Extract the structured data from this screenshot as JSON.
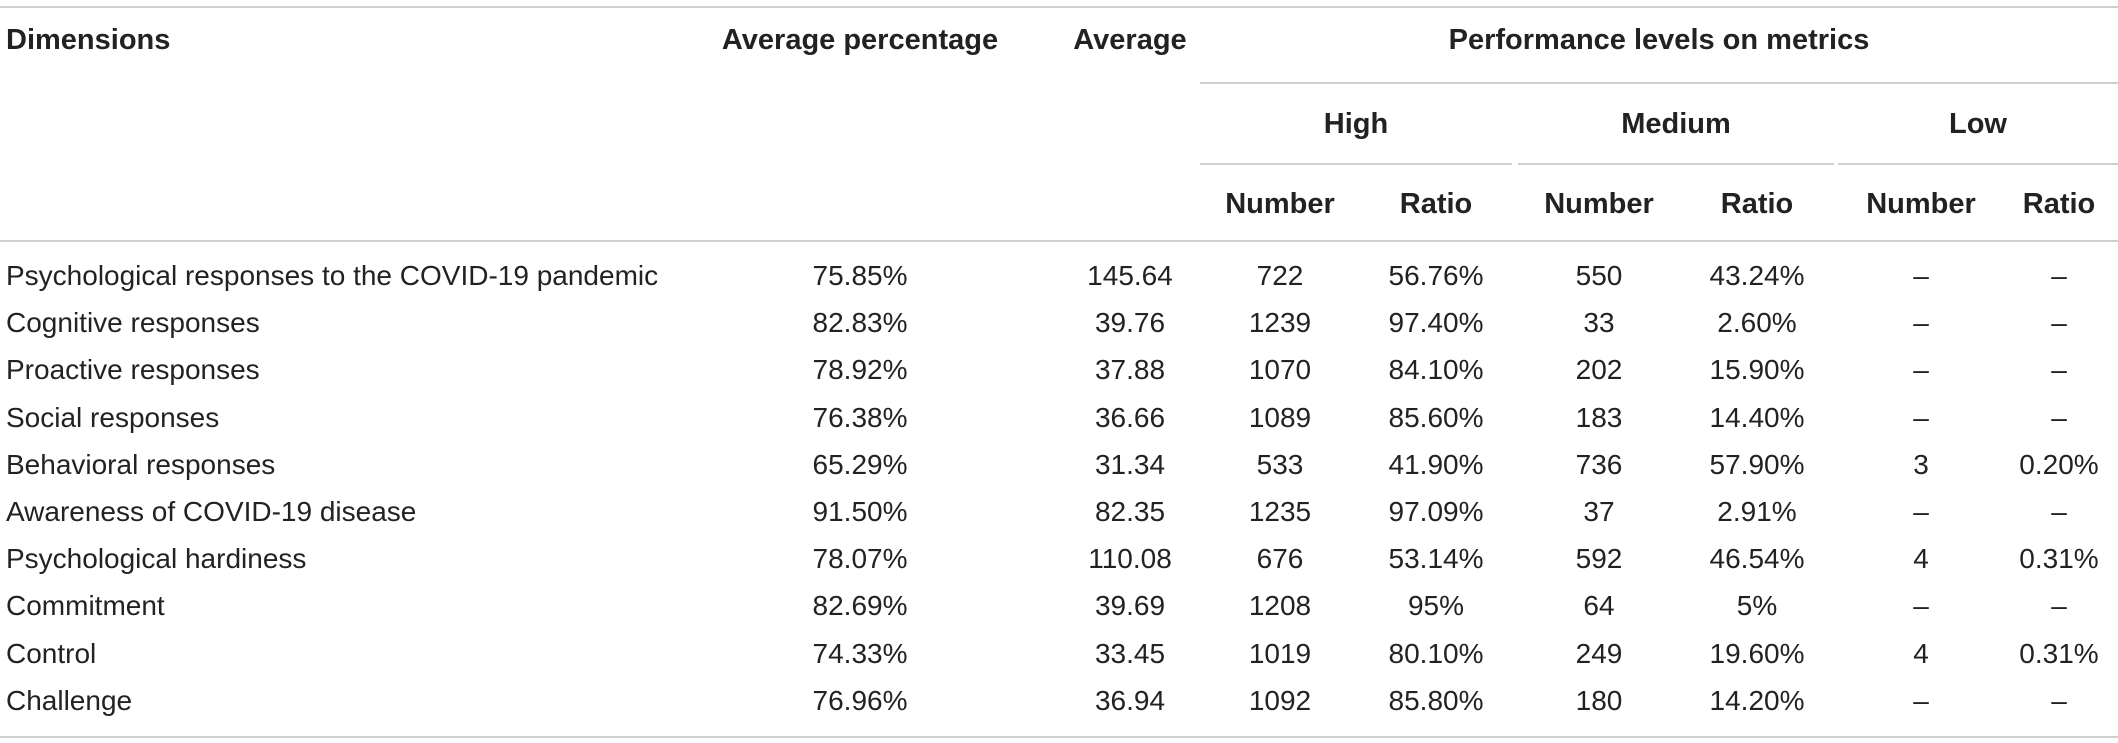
{
  "table": {
    "headers": {
      "dimensions": "Dimensions",
      "avg_percentage": "Average percentage",
      "average": "Average",
      "performance": "Performance levels on metrics",
      "high": "High",
      "medium": "Medium",
      "low": "Low",
      "number": "Number",
      "ratio": "Ratio"
    },
    "rows": [
      {
        "dimension": "Psychological responses to the COVID-19 pandemic",
        "avg_pct": "75.85%",
        "avg": "145.64",
        "high_num": "722",
        "high_ratio": "56.76%",
        "med_num": "550",
        "med_ratio": "43.24%",
        "low_num": "–",
        "low_ratio": "–"
      },
      {
        "dimension": "Cognitive responses",
        "avg_pct": "82.83%",
        "avg": "39.76",
        "high_num": "1239",
        "high_ratio": "97.40%",
        "med_num": "33",
        "med_ratio": "2.60%",
        "low_num": "–",
        "low_ratio": "–"
      },
      {
        "dimension": "Proactive responses",
        "avg_pct": "78.92%",
        "avg": "37.88",
        "high_num": "1070",
        "high_ratio": "84.10%",
        "med_num": "202",
        "med_ratio": "15.90%",
        "low_num": "–",
        "low_ratio": "–"
      },
      {
        "dimension": "Social responses",
        "avg_pct": "76.38%",
        "avg": "36.66",
        "high_num": "1089",
        "high_ratio": "85.60%",
        "med_num": "183",
        "med_ratio": "14.40%",
        "low_num": "–",
        "low_ratio": "–"
      },
      {
        "dimension": "Behavioral responses",
        "avg_pct": "65.29%",
        "avg": "31.34",
        "high_num": "533",
        "high_ratio": "41.90%",
        "med_num": "736",
        "med_ratio": "57.90%",
        "low_num": "3",
        "low_ratio": "0.20%"
      },
      {
        "dimension": "Awareness of COVID-19 disease",
        "avg_pct": "91.50%",
        "avg": "82.35",
        "high_num": "1235",
        "high_ratio": "97.09%",
        "med_num": "37",
        "med_ratio": "2.91%",
        "low_num": "–",
        "low_ratio": "–"
      },
      {
        "dimension": "Psychological hardiness",
        "avg_pct": "78.07%",
        "avg": "110.08",
        "high_num": "676",
        "high_ratio": "53.14%",
        "med_num": "592",
        "med_ratio": "46.54%",
        "low_num": "4",
        "low_ratio": "0.31%"
      },
      {
        "dimension": "Commitment",
        "avg_pct": "82.69%",
        "avg": "39.69",
        "high_num": "1208",
        "high_ratio": "95%",
        "med_num": "64",
        "med_ratio": "5%",
        "low_num": "–",
        "low_ratio": "–"
      },
      {
        "dimension": "Control",
        "avg_pct": "74.33%",
        "avg": "33.45",
        "high_num": "1019",
        "high_ratio": "80.10%",
        "med_num": "249",
        "med_ratio": "19.60%",
        "low_num": "4",
        "low_ratio": "0.31%"
      },
      {
        "dimension": "Challenge",
        "avg_pct": "76.96%",
        "avg": "36.94",
        "high_num": "1092",
        "high_ratio": "85.80%",
        "med_num": "180",
        "med_ratio": "14.20%",
        "low_num": "–",
        "low_ratio": "–"
      }
    ]
  }
}
